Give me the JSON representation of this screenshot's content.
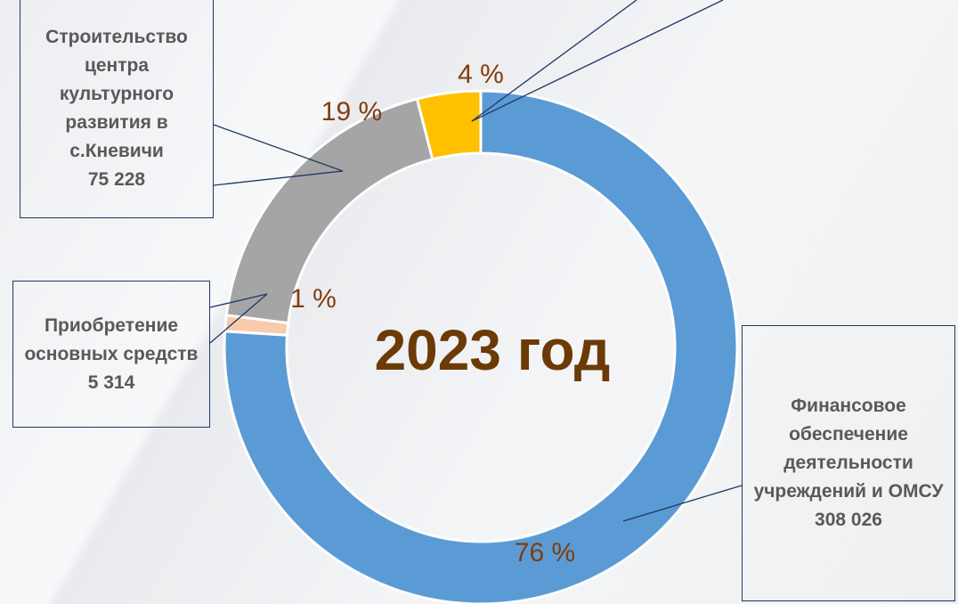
{
  "chart_data": {
    "type": "pie",
    "donut": true,
    "title": "2023 год",
    "categories": [
      "Финансовое обеспечение деятельности учреждений и ОМСУ",
      "Приобретение основных средств",
      "Строительство центра культурного развития в с.Кневичи",
      null
    ],
    "values": [
      76,
      1,
      19,
      4
    ],
    "value_labels": [
      "76 %",
      "1 %",
      "19 %",
      "4 %"
    ],
    "amounts": [
      308026,
      5314,
      75228,
      null
    ],
    "amount_labels": [
      "308 026",
      "5 314",
      "75 228",
      null
    ],
    "colors": [
      "#5b9bd5",
      "#f8cbad",
      "#a5a5a5",
      "#ffc000"
    ]
  }
}
